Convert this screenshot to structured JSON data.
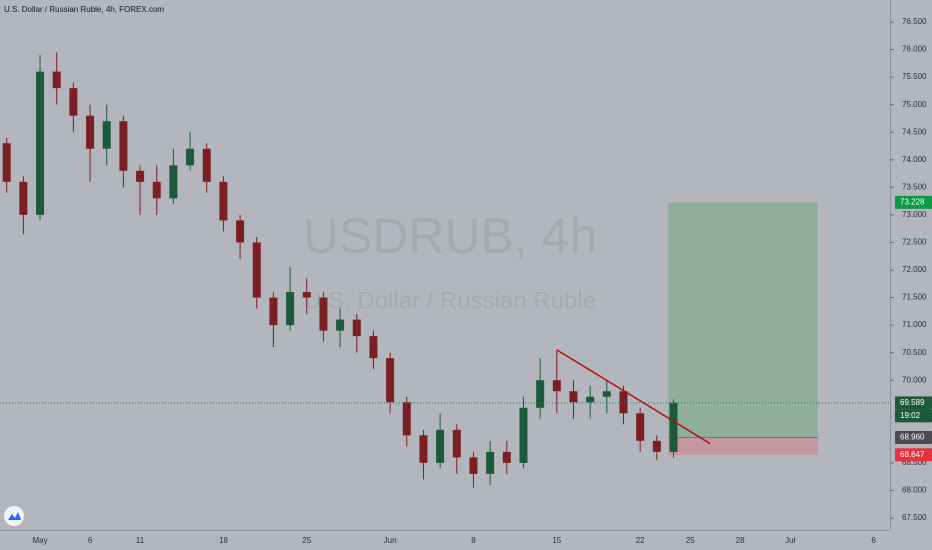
{
  "chart_data": {
    "type": "candlestick",
    "title": "U.S. Dollar / Russian Ruble, 4h, FOREX.com",
    "watermark": "USDRUB, 4h",
    "watermark_subtitle": "U.S. Dollar / Russian Ruble",
    "categories": [
      null,
      null,
      "May",
      null,
      null,
      "6",
      null,
      null,
      "11",
      null,
      null,
      null,
      null,
      "18",
      null,
      null,
      null,
      null,
      "25",
      null,
      null,
      null,
      null,
      "Jun",
      null,
      null,
      null,
      null,
      "8",
      null,
      null,
      null,
      null,
      "15",
      null,
      null,
      null,
      null,
      "22",
      null,
      null,
      "25",
      null,
      null,
      "28",
      null,
      null,
      "Jul",
      null,
      null,
      null,
      null,
      "6"
    ],
    "open": [
      74.3,
      73.6,
      73.0,
      75.6,
      75.3,
      74.8,
      74.2,
      74.7,
      73.8,
      73.6,
      73.3,
      73.9,
      74.2,
      73.6,
      72.9,
      72.5,
      71.5,
      71.0,
      71.6,
      71.5,
      70.9,
      71.1,
      70.8,
      70.4,
      69.6,
      69.0,
      68.5,
      69.1,
      68.6,
      68.3,
      68.7,
      68.5,
      69.5,
      70.0,
      69.8,
      69.6,
      69.7,
      69.8,
      69.4,
      68.9,
      68.7,
      null,
      null,
      null,
      null,
      null,
      null,
      null,
      null,
      null,
      null,
      null,
      null
    ],
    "high": [
      74.4,
      73.7,
      75.9,
      75.95,
      75.4,
      75.0,
      75.0,
      74.8,
      73.9,
      73.9,
      74.2,
      74.5,
      74.3,
      73.7,
      73.0,
      72.6,
      71.6,
      72.05,
      71.85,
      71.6,
      71.3,
      71.2,
      70.9,
      70.5,
      69.7,
      69.1,
      69.4,
      69.2,
      68.7,
      68.9,
      68.9,
      69.7,
      70.4,
      70.55,
      70.0,
      69.9,
      70.0,
      69.9,
      69.5,
      69.0,
      69.65,
      null,
      null,
      null,
      null,
      null,
      null,
      null,
      null,
      null,
      null,
      null,
      null
    ],
    "low": [
      73.4,
      72.65,
      72.9,
      75.0,
      74.5,
      73.6,
      73.9,
      73.5,
      73.0,
      73.0,
      73.2,
      73.8,
      73.4,
      72.7,
      72.2,
      71.3,
      70.6,
      70.9,
      71.2,
      70.7,
      70.6,
      70.5,
      70.2,
      69.4,
      68.8,
      68.2,
      68.4,
      68.3,
      68.05,
      68.1,
      68.3,
      68.4,
      69.3,
      69.4,
      69.3,
      69.3,
      69.4,
      69.2,
      68.7,
      68.55,
      68.6,
      null,
      null,
      null,
      null,
      null,
      null,
      null,
      null,
      null,
      null,
      null,
      null
    ],
    "close": [
      73.6,
      73.0,
      75.6,
      75.3,
      74.8,
      74.2,
      74.7,
      73.8,
      73.6,
      73.3,
      73.9,
      74.2,
      73.6,
      72.9,
      72.5,
      71.5,
      71.0,
      71.6,
      71.5,
      70.9,
      71.1,
      70.8,
      70.4,
      69.6,
      69.0,
      68.5,
      69.1,
      68.6,
      68.3,
      68.7,
      68.5,
      69.5,
      70.0,
      69.8,
      69.6,
      69.7,
      69.8,
      69.4,
      68.9,
      68.7,
      69.589,
      null,
      null,
      null,
      null,
      null,
      null,
      null,
      null,
      null,
      null,
      null,
      null
    ],
    "up_color": "#1d5a3c",
    "down_color": "#7a1f24",
    "ylim": [
      67.5,
      76.5
    ],
    "yticks": [
      {
        "value": 67.5,
        "label": "67.500"
      },
      {
        "value": 68,
        "label": "68.000"
      },
      {
        "value": 68.5,
        "label": "68.500"
      },
      {
        "value": 70,
        "label": "70.000"
      },
      {
        "value": 70.5,
        "label": "70.500"
      },
      {
        "value": 71,
        "label": "71.000"
      },
      {
        "value": 71.5,
        "label": "71.500"
      },
      {
        "value": 72,
        "label": "72.000"
      },
      {
        "value": 72.5,
        "label": "72.500"
      },
      {
        "value": 73,
        "label": "73.000"
      },
      {
        "value": 73.5,
        "label": "73.500"
      },
      {
        "value": 74,
        "label": "74.000"
      },
      {
        "value": 74.5,
        "label": "74.500"
      },
      {
        "value": 75,
        "label": "75.000"
      },
      {
        "value": 75.5,
        "label": "75.500"
      },
      {
        "value": 76,
        "label": "76.000"
      },
      {
        "value": 76.5,
        "label": "76.500"
      }
    ],
    "trendline": {
      "start": 70.55,
      "end": 68.85,
      "color": "#b01010"
    },
    "position": {
      "target": {
        "value": 73.228,
        "label": "73.228"
      },
      "entry": {
        "value": 68.96,
        "label": "68.960"
      },
      "stop": {
        "value": 68.647,
        "label": "68.647"
      }
    },
    "last_price": {
      "value": 69.589,
      "label": "69.589"
    },
    "countdown": "19:02"
  }
}
